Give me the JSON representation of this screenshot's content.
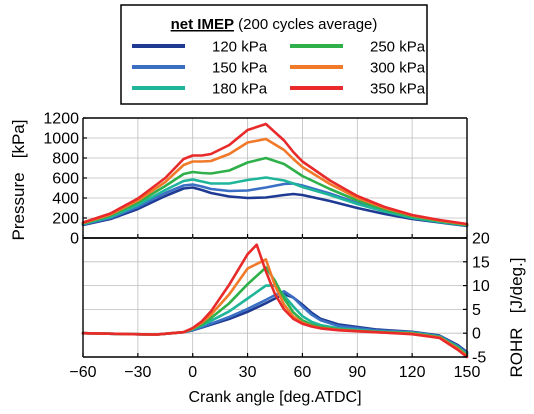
{
  "legend": {
    "title_bold": "net IMEP",
    "title_rest": " (200 cycles average)",
    "placement": "top-center"
  },
  "chart_data": [
    {
      "type": "line",
      "panel": "top",
      "ylabel": "Pressure   [kPa]",
      "xlim": [
        -60,
        150
      ],
      "ylim": [
        0,
        1200
      ],
      "yticks": [
        "0",
        "200",
        "400",
        "600",
        "800",
        "1000",
        "1200"
      ],
      "grid": true,
      "series": [
        {
          "name": "120 kPa",
          "color": "#1f3a93",
          "x": [
            -60,
            -45,
            -30,
            -15,
            -5,
            0,
            5,
            10,
            20,
            30,
            40,
            50,
            55,
            60,
            75,
            90,
            105,
            120,
            135,
            150
          ],
          "y": [
            130,
            190,
            290,
            420,
            495,
            505,
            480,
            450,
            415,
            400,
            405,
            430,
            440,
            430,
            370,
            300,
            240,
            190,
            155,
            120
          ]
        },
        {
          "name": "150 kPa",
          "color": "#3a6fc4",
          "x": [
            -60,
            -45,
            -30,
            -15,
            -5,
            0,
            5,
            10,
            20,
            30,
            40,
            50,
            55,
            60,
            75,
            90,
            105,
            120,
            135,
            150
          ],
          "y": [
            135,
            200,
            310,
            450,
            525,
            535,
            515,
            490,
            470,
            475,
            505,
            540,
            545,
            525,
            445,
            350,
            270,
            205,
            165,
            125
          ]
        },
        {
          "name": "180 kPa",
          "color": "#1fb59a",
          "x": [
            -60,
            -45,
            -30,
            -15,
            -5,
            0,
            5,
            10,
            20,
            30,
            40,
            50,
            55,
            60,
            75,
            90,
            105,
            120,
            135,
            150
          ],
          "y": [
            140,
            210,
            330,
            480,
            570,
            585,
            565,
            545,
            545,
            580,
            605,
            575,
            545,
            510,
            430,
            340,
            265,
            200,
            160,
            125
          ]
        },
        {
          "name": "250 kPa",
          "color": "#2fb04a",
          "x": [
            -60,
            -45,
            -30,
            -15,
            -5,
            0,
            5,
            10,
            20,
            30,
            40,
            50,
            55,
            60,
            75,
            90,
            105,
            120,
            135,
            150
          ],
          "y": [
            145,
            225,
            355,
            520,
            640,
            660,
            650,
            645,
            675,
            755,
            800,
            740,
            680,
            620,
            490,
            375,
            285,
            215,
            170,
            130
          ]
        },
        {
          "name": "300 kPa",
          "color": "#f07a2a",
          "x": [
            -60,
            -45,
            -30,
            -15,
            -5,
            0,
            5,
            10,
            20,
            30,
            40,
            50,
            55,
            60,
            75,
            90,
            105,
            120,
            135,
            150
          ],
          "y": [
            150,
            235,
            375,
            560,
            730,
            765,
            765,
            770,
            840,
            955,
            990,
            880,
            790,
            710,
            540,
            400,
            300,
            225,
            175,
            135
          ]
        },
        {
          "name": "350 kPa",
          "color": "#e82a2a",
          "x": [
            -60,
            -45,
            -30,
            -15,
            -5,
            0,
            5,
            10,
            20,
            30,
            40,
            50,
            55,
            60,
            75,
            90,
            105,
            120,
            135,
            150
          ],
          "y": [
            155,
            245,
            395,
            600,
            790,
            825,
            825,
            840,
            930,
            1080,
            1140,
            975,
            860,
            765,
            575,
            420,
            310,
            230,
            180,
            140
          ]
        }
      ]
    },
    {
      "type": "line",
      "panel": "bottom",
      "ylabel": "ROHR   [J/deg.]",
      "xlabel": "Crank angle [deg.ATDC]",
      "xlim": [
        -60,
        150
      ],
      "ylim": [
        -5,
        20
      ],
      "xticks": [
        "-60",
        "-30",
        "0",
        "30",
        "60",
        "90",
        "120",
        "150"
      ],
      "yticks": [
        "-5",
        "0",
        "5",
        "10",
        "15",
        "20"
      ],
      "grid": true,
      "series": [
        {
          "name": "120 kPa",
          "color": "#1f3a93",
          "x": [
            -60,
            -20,
            -5,
            0,
            5,
            10,
            20,
            30,
            40,
            45,
            50,
            55,
            60,
            65,
            70,
            80,
            100,
            120,
            135,
            145,
            150
          ],
          "y": [
            0,
            -0.3,
            0.2,
            0.6,
            1.2,
            1.8,
            3.0,
            4.5,
            6.3,
            7.3,
            8.2,
            7.5,
            6.0,
            4.3,
            3.0,
            1.8,
            0.8,
            0.3,
            -0.5,
            -2.5,
            -4
          ]
        },
        {
          "name": "150 kPa",
          "color": "#3a6fc4",
          "x": [
            -60,
            -20,
            -5,
            0,
            5,
            10,
            20,
            30,
            40,
            45,
            50,
            55,
            60,
            65,
            70,
            80,
            100,
            120,
            135,
            145,
            150
          ],
          "y": [
            0,
            -0.3,
            0.2,
            0.7,
            1.3,
            2.0,
            3.4,
            5.1,
            7.0,
            8.0,
            8.8,
            7.5,
            5.6,
            3.9,
            2.7,
            1.5,
            0.6,
            0.2,
            -0.6,
            -2.7,
            -4.2
          ]
        },
        {
          "name": "180 kPa",
          "color": "#1fb59a",
          "x": [
            -60,
            -20,
            -5,
            0,
            5,
            10,
            20,
            30,
            40,
            45,
            50,
            55,
            60,
            65,
            70,
            80,
            100,
            120,
            135,
            145,
            150
          ],
          "y": [
            0,
            -0.3,
            0.2,
            0.8,
            1.6,
            2.6,
            4.6,
            7.3,
            10.0,
            10.0,
            7.9,
            5.6,
            3.6,
            2.4,
            1.7,
            1.0,
            0.4,
            0.1,
            -0.7,
            -2.9,
            -4.4
          ]
        },
        {
          "name": "250 kPa",
          "color": "#2fb04a",
          "x": [
            -60,
            -20,
            -5,
            0,
            5,
            10,
            20,
            30,
            40,
            45,
            50,
            55,
            60,
            65,
            70,
            80,
            100,
            120,
            135,
            145,
            150
          ],
          "y": [
            0,
            -0.3,
            0.2,
            0.9,
            1.9,
            3.2,
            6.3,
            10.3,
            13.8,
            11.0,
            7.3,
            4.4,
            2.7,
            1.8,
            1.3,
            0.8,
            0.3,
            0.0,
            -0.8,
            -3.1,
            -4.6
          ]
        },
        {
          "name": "300 kPa",
          "color": "#f07a2a",
          "x": [
            -60,
            -20,
            -5,
            0,
            5,
            10,
            20,
            30,
            40,
            45,
            50,
            55,
            60,
            65,
            70,
            80,
            100,
            120,
            135,
            145,
            150
          ],
          "y": [
            0,
            -0.3,
            0.2,
            1.0,
            2.2,
            3.9,
            8.2,
            13.6,
            15.5,
            10.0,
            6.0,
            3.5,
            2.2,
            1.5,
            1.1,
            0.7,
            0.2,
            -0.1,
            -0.9,
            -3.3,
            -4.8
          ]
        },
        {
          "name": "350 kPa",
          "color": "#e82a2a",
          "x": [
            -60,
            -20,
            -5,
            0,
            5,
            10,
            20,
            30,
            35,
            40,
            45,
            50,
            55,
            60,
            65,
            70,
            80,
            100,
            120,
            135,
            145,
            150
          ],
          "y": [
            0,
            -0.3,
            0.2,
            1.1,
            2.5,
            4.6,
            10.2,
            16.6,
            18.6,
            13.0,
            8.2,
            5.0,
            3.0,
            2.0,
            1.4,
            1.0,
            0.6,
            0.2,
            -0.2,
            -1.0,
            -3.5,
            -5
          ]
        }
      ]
    }
  ]
}
